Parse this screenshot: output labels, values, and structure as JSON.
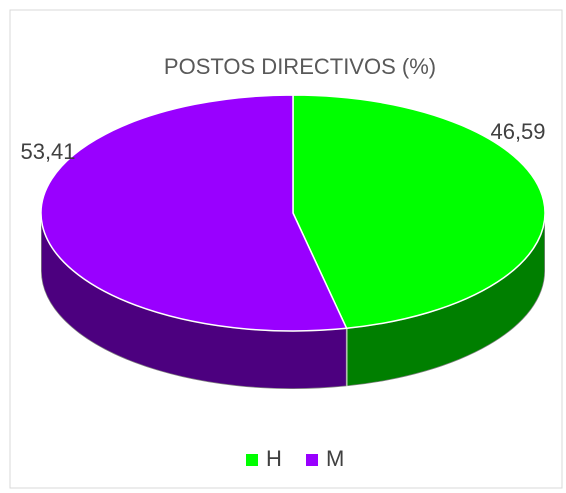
{
  "chart_data": {
    "type": "pie",
    "title": "POSTOS DIRECTIVOS (%)",
    "categories": [
      "H",
      "M"
    ],
    "values": [
      46.59,
      53.41
    ],
    "value_labels": [
      "46,59",
      "53,41"
    ],
    "colors": [
      "#00ff00",
      "#9900ff"
    ],
    "legend": "bottom"
  }
}
